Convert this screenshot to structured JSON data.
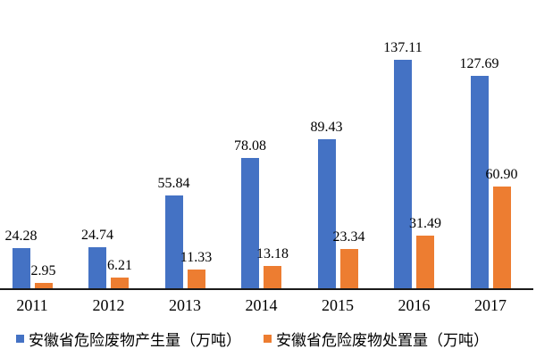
{
  "chart_data": {
    "type": "bar",
    "title": "",
    "categories": [
      "2011",
      "2012",
      "2013",
      "2014",
      "2015",
      "2016",
      "2017"
    ],
    "series": [
      {
        "name": "安徽省危险废物产生量（万吨）",
        "color": "#4472C4",
        "values": [
          24.28,
          24.74,
          55.84,
          78.08,
          89.43,
          137.11,
          127.69
        ],
        "labels": [
          "24.28",
          "24.74",
          "55.84",
          "78.08",
          "89.43",
          "137.11",
          "127.69"
        ]
      },
      {
        "name": "安徽省危险废物处置量（万吨）",
        "color": "#ED7D31",
        "values": [
          2.95,
          6.21,
          11.33,
          13.18,
          23.34,
          31.49,
          60.9
        ],
        "labels": [
          "2.95",
          "6.21",
          "11.33",
          "13.18",
          "23.34",
          "31.49",
          "60.90"
        ]
      }
    ],
    "ylim": [
      0,
      137.11
    ],
    "xlabel": "",
    "ylabel": "",
    "grid": false,
    "y_axis_visible": false,
    "legend_position": "bottom",
    "value_labels_visible": true,
    "axis_color": "#1a1a1a",
    "text_color": "#000000"
  }
}
